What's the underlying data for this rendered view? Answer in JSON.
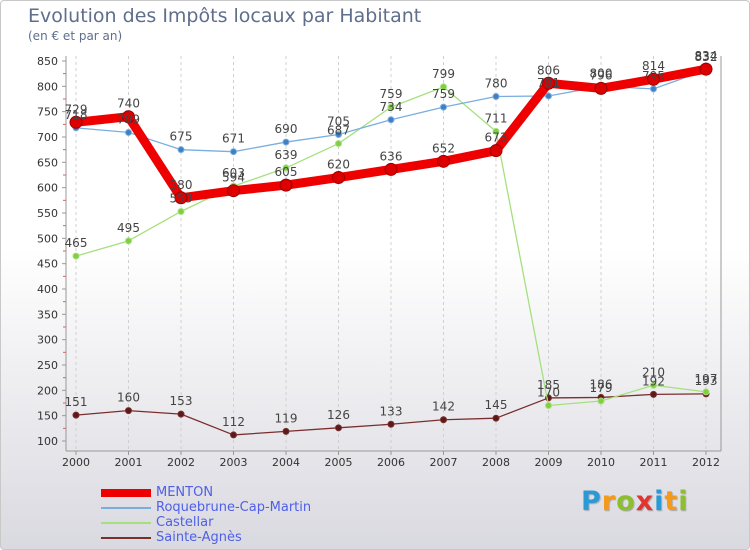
{
  "header": {
    "title": "Evolution des Impôts locaux par Habitant",
    "subtitle": "(en € et par an)"
  },
  "logo": {
    "letters": [
      "P",
      "r",
      "o",
      "x",
      "i",
      "t",
      "i"
    ],
    "colors": [
      "#2a9ad7",
      "#f39a1b",
      "#8bbf2f",
      "#e3342f",
      "#2a9ad7",
      "#f39a1b",
      "#8bbf2f"
    ]
  },
  "chart_data": {
    "type": "line",
    "x": [
      "2000",
      "2001",
      "2002",
      "2003",
      "2004",
      "2005",
      "2006",
      "2007",
      "2008",
      "2009",
      "2010",
      "2011",
      "2012"
    ],
    "ylim": [
      100,
      850
    ],
    "yticks": [
      "100",
      "150",
      "200",
      "250",
      "300",
      "350",
      "400",
      "450",
      "500",
      "550",
      "600",
      "650",
      "700",
      "750",
      "800",
      "850"
    ],
    "grid": "vertical-dashed",
    "legend_position": "bottom-left",
    "series": [
      {
        "name": "MENTON",
        "color": "#ee0000",
        "values": [
          729,
          740,
          580,
          594,
          605,
          620,
          636,
          652,
          673,
          806,
          796,
          814,
          834
        ],
        "labels": [
          "729",
          "740",
          "580",
          "594",
          "605",
          "620",
          "636",
          "652",
          "673",
          "806",
          "796",
          "814",
          "834"
        ]
      },
      {
        "name": "Roquebrune-Cap-Martin",
        "color": "#7aaee0",
        "values": [
          718,
          709,
          675,
          671,
          690,
          705,
          734,
          759,
          780,
          781,
          800,
          795,
          832
        ],
        "labels": [
          "718",
          "709",
          "675",
          "671",
          "690",
          "705",
          "734",
          "759",
          "780",
          "781",
          "800",
          "795",
          "832"
        ]
      },
      {
        "name": "Castellar",
        "color": "#a6e07e",
        "values": [
          465,
          495,
          553,
          603,
          639,
          687,
          759,
          799,
          711,
          170,
          179,
          210,
          197
        ],
        "labels": [
          "465",
          "495",
          "553",
          "603",
          "639",
          "687",
          "759",
          "799",
          "711",
          "170",
          "179",
          "210",
          "197"
        ]
      },
      {
        "name": "Sainte-Agnès",
        "color": "#7a2e2e",
        "values": [
          151,
          160,
          153,
          112,
          119,
          126,
          133,
          142,
          145,
          185,
          186,
          192,
          193
        ],
        "labels": [
          "151",
          "160",
          "153",
          "112",
          "119",
          "126",
          "133",
          "142",
          "145",
          "185",
          "186",
          "192",
          "193"
        ]
      }
    ]
  }
}
